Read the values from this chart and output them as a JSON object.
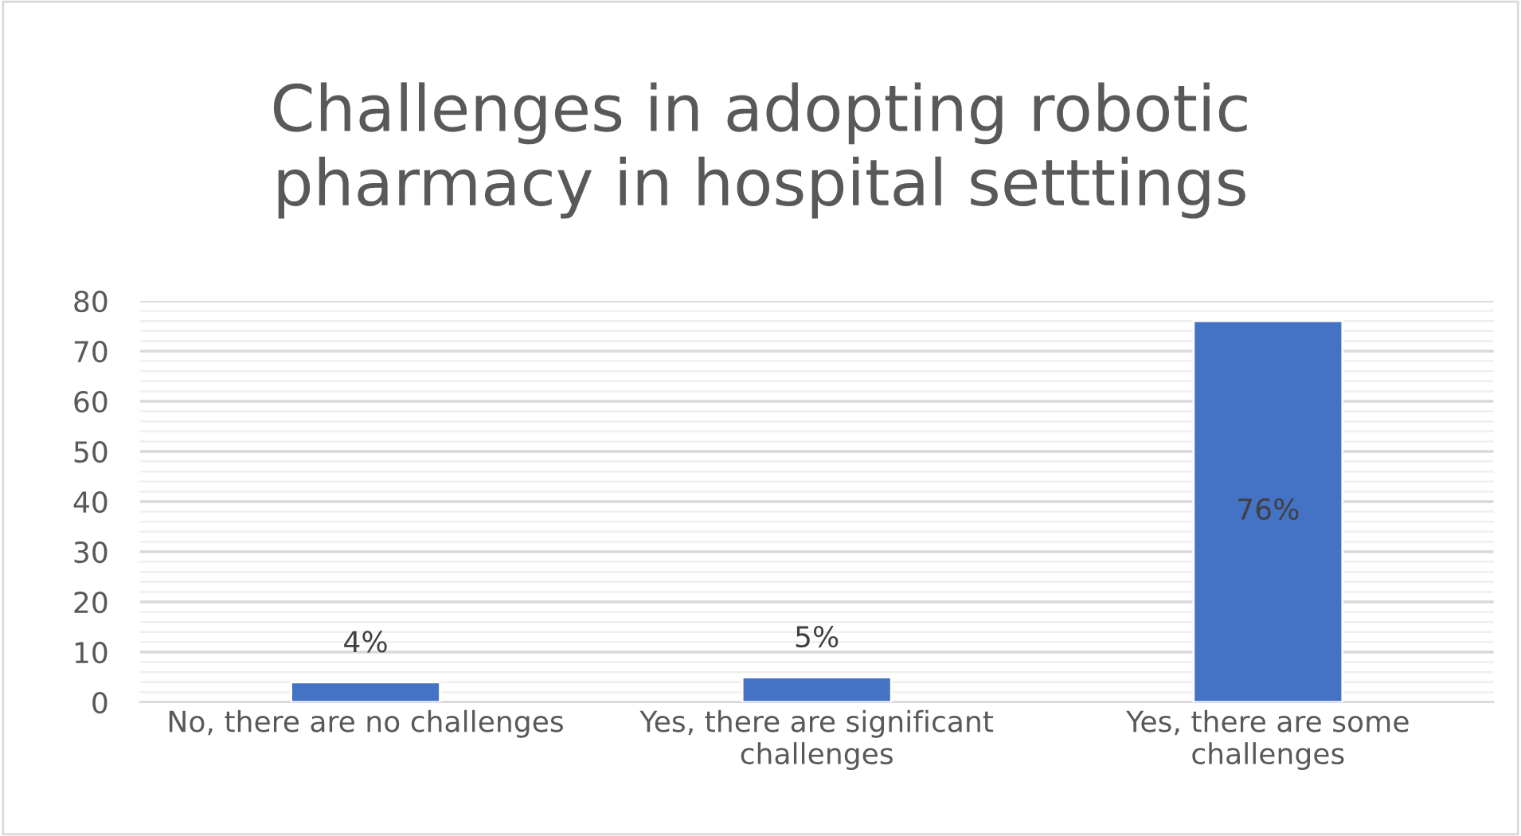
{
  "chart_data": {
    "type": "bar",
    "title": "Challenges in adopting robotic pharmacy in hospital setttings",
    "categories": [
      "No, there are no challenges",
      "Yes, there are significant challenges",
      "Yes, there are some challenges"
    ],
    "values": [
      4,
      5,
      76
    ],
    "color": "#4472c4",
    "value_labels": [
      "4%",
      "5%",
      "76%"
    ],
    "ylim": [
      0,
      80
    ],
    "yticks": [
      0,
      10,
      20,
      30,
      40,
      50,
      60,
      70,
      80
    ],
    "grid": "y"
  }
}
